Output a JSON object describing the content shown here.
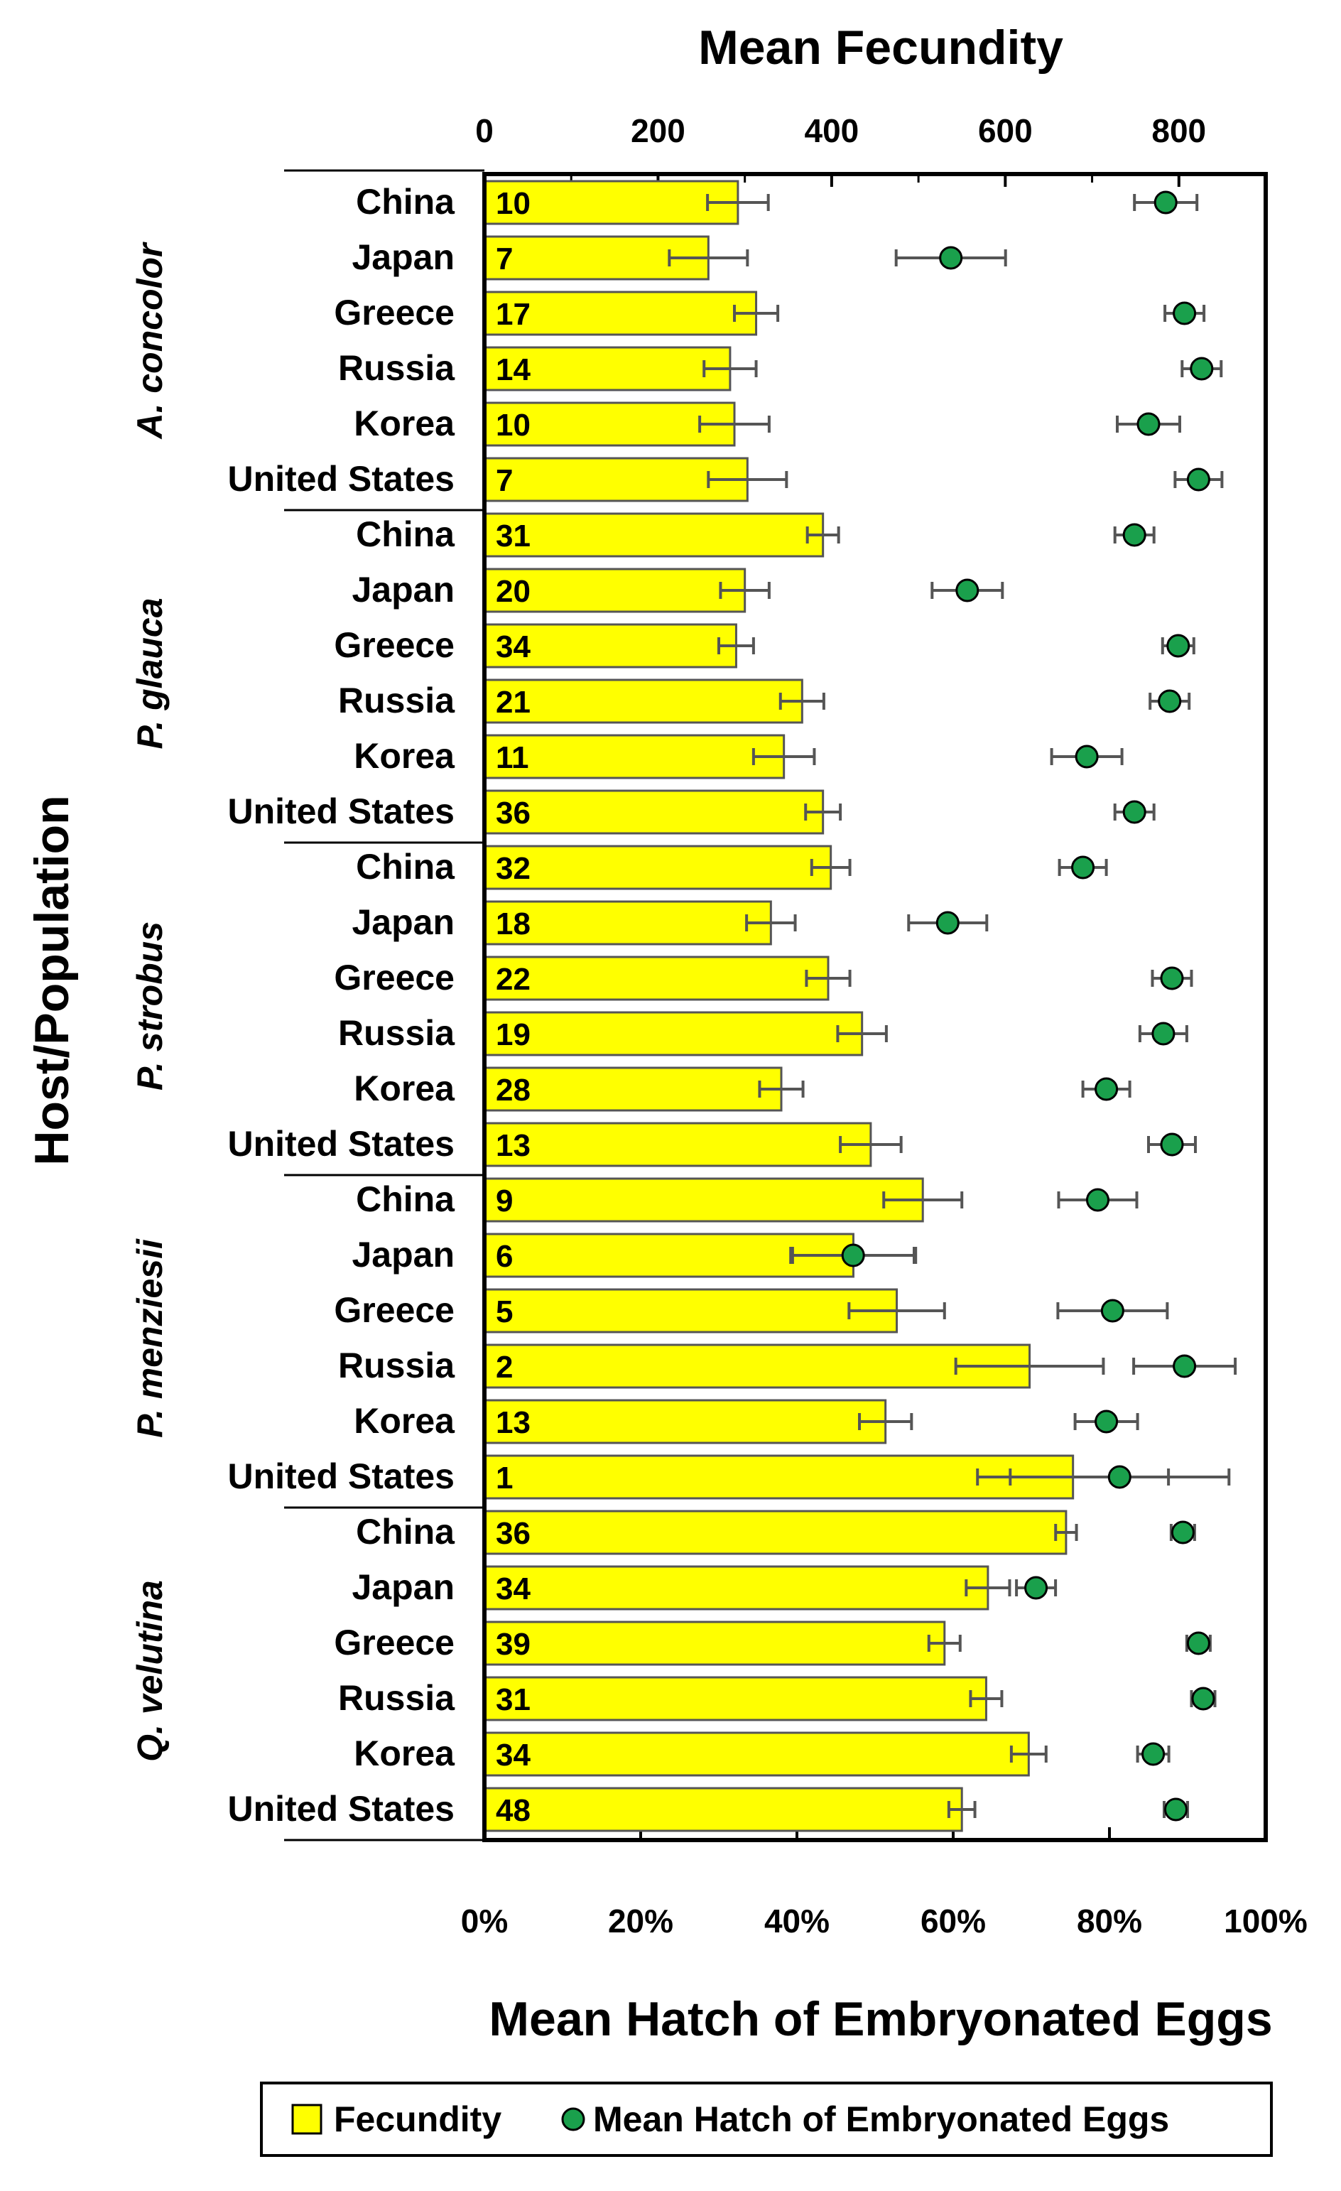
{
  "chart_data": {
    "type": "bar",
    "title": "Mean Fecundity",
    "top_axis": {
      "label": "Mean Fecundity",
      "range": [
        0,
        900
      ],
      "ticks": [
        0,
        200,
        400,
        600,
        800
      ]
    },
    "bottom_axis": {
      "label": "Mean Hatch of Embryonated Eggs",
      "range": [
        0,
        1
      ],
      "ticks": [
        "0%",
        "20%",
        "40%",
        "60%",
        "80%",
        "100%"
      ]
    },
    "ylabel": "Host/Population",
    "legend": {
      "position": "bottom",
      "entries": [
        "Fecundity",
        "Mean Hatch of Embryonated Eggs"
      ]
    },
    "colors": {
      "bar": "#ffff00",
      "bar_stroke": "#555555",
      "dot": "#1aa04c",
      "dot_stroke": "#000000",
      "error": "#555555"
    },
    "groups": [
      {
        "host": "A. concolor",
        "rows": [
          {
            "pop": "China",
            "n": "10",
            "fecundity": 292,
            "fec_err": 35,
            "hatch": 0.872,
            "hatch_err": 0.04
          },
          {
            "pop": "Japan",
            "n": "7",
            "fecundity": 258,
            "fec_err": 45,
            "hatch": 0.597,
            "hatch_err": 0.07
          },
          {
            "pop": "Greece",
            "n": "17",
            "fecundity": 313,
            "fec_err": 25,
            "hatch": 0.896,
            "hatch_err": 0.025
          },
          {
            "pop": "Russia",
            "n": "14",
            "fecundity": 283,
            "fec_err": 30,
            "hatch": 0.918,
            "hatch_err": 0.025
          },
          {
            "pop": "Korea",
            "n": "10",
            "fecundity": 288,
            "fec_err": 40,
            "hatch": 0.85,
            "hatch_err": 0.04
          },
          {
            "pop": "United States",
            "n": "7",
            "fecundity": 303,
            "fec_err": 45,
            "hatch": 0.914,
            "hatch_err": 0.03
          }
        ]
      },
      {
        "host": "P. glauca",
        "rows": [
          {
            "pop": "China",
            "n": "31",
            "fecundity": 390,
            "fec_err": 18,
            "hatch": 0.832,
            "hatch_err": 0.025
          },
          {
            "pop": "Japan",
            "n": "20",
            "fecundity": 300,
            "fec_err": 28,
            "hatch": 0.618,
            "hatch_err": 0.045
          },
          {
            "pop": "Greece",
            "n": "34",
            "fecundity": 290,
            "fec_err": 20,
            "hatch": 0.888,
            "hatch_err": 0.02
          },
          {
            "pop": "Russia",
            "n": "21",
            "fecundity": 366,
            "fec_err": 25,
            "hatch": 0.877,
            "hatch_err": 0.025
          },
          {
            "pop": "Korea",
            "n": "11",
            "fecundity": 345,
            "fec_err": 35,
            "hatch": 0.771,
            "hatch_err": 0.045
          },
          {
            "pop": "United States",
            "n": "36",
            "fecundity": 390,
            "fec_err": 20,
            "hatch": 0.832,
            "hatch_err": 0.025
          }
        ]
      },
      {
        "host": "P. strobus",
        "rows": [
          {
            "pop": "China",
            "n": "32",
            "fecundity": 399,
            "fec_err": 22,
            "hatch": 0.766,
            "hatch_err": 0.03
          },
          {
            "pop": "Japan",
            "n": "18",
            "fecundity": 330,
            "fec_err": 28,
            "hatch": 0.593,
            "hatch_err": 0.05
          },
          {
            "pop": "Greece",
            "n": "22",
            "fecundity": 396,
            "fec_err": 25,
            "hatch": 0.88,
            "hatch_err": 0.025
          },
          {
            "pop": "Russia",
            "n": "19",
            "fecundity": 435,
            "fec_err": 28,
            "hatch": 0.869,
            "hatch_err": 0.03
          },
          {
            "pop": "Korea",
            "n": "28",
            "fecundity": 342,
            "fec_err": 25,
            "hatch": 0.796,
            "hatch_err": 0.03
          },
          {
            "pop": "United States",
            "n": "13",
            "fecundity": 445,
            "fec_err": 35,
            "hatch": 0.88,
            "hatch_err": 0.03
          }
        ]
      },
      {
        "host": "P. menziesii",
        "rows": [
          {
            "pop": "China",
            "n": "9",
            "fecundity": 505,
            "fec_err": 45,
            "hatch": 0.785,
            "hatch_err": 0.05
          },
          {
            "pop": "Japan",
            "n": "6",
            "fecundity": 425,
            "fec_err": 70,
            "hatch": 0.472,
            "hatch_err": 0.08
          },
          {
            "pop": "Greece",
            "n": "5",
            "fecundity": 475,
            "fec_err": 55,
            "hatch": 0.804,
            "hatch_err": 0.07
          },
          {
            "pop": "Russia",
            "n": "2",
            "fecundity": 628,
            "fec_err": 85,
            "hatch": 0.896,
            "hatch_err": 0.065
          },
          {
            "pop": "Korea",
            "n": "13",
            "fecundity": 462,
            "fec_err": 30,
            "hatch": 0.796,
            "hatch_err": 0.04
          },
          {
            "pop": "United States",
            "n": "1",
            "fecundity": 678,
            "fec_err": 110,
            "hatch": 0.813,
            "hatch_err": 0.14
          }
        ]
      },
      {
        "host": "Q. velutina",
        "rows": [
          {
            "pop": "China",
            "n": "36",
            "fecundity": 670,
            "fec_err": 12,
            "hatch": 0.894,
            "hatch_err": 0.015
          },
          {
            "pop": "Japan",
            "n": "34",
            "fecundity": 580,
            "fec_err": 25,
            "hatch": 0.706,
            "hatch_err": 0.025
          },
          {
            "pop": "Greece",
            "n": "39",
            "fecundity": 530,
            "fec_err": 18,
            "hatch": 0.914,
            "hatch_err": 0.015
          },
          {
            "pop": "Russia",
            "n": "31",
            "fecundity": 578,
            "fec_err": 18,
            "hatch": 0.92,
            "hatch_err": 0.015
          },
          {
            "pop": "Korea",
            "n": "34",
            "fecundity": 627,
            "fec_err": 20,
            "hatch": 0.856,
            "hatch_err": 0.02
          },
          {
            "pop": "United States",
            "n": "48",
            "fecundity": 550,
            "fec_err": 15,
            "hatch": 0.885,
            "hatch_err": 0.015
          }
        ]
      }
    ]
  }
}
